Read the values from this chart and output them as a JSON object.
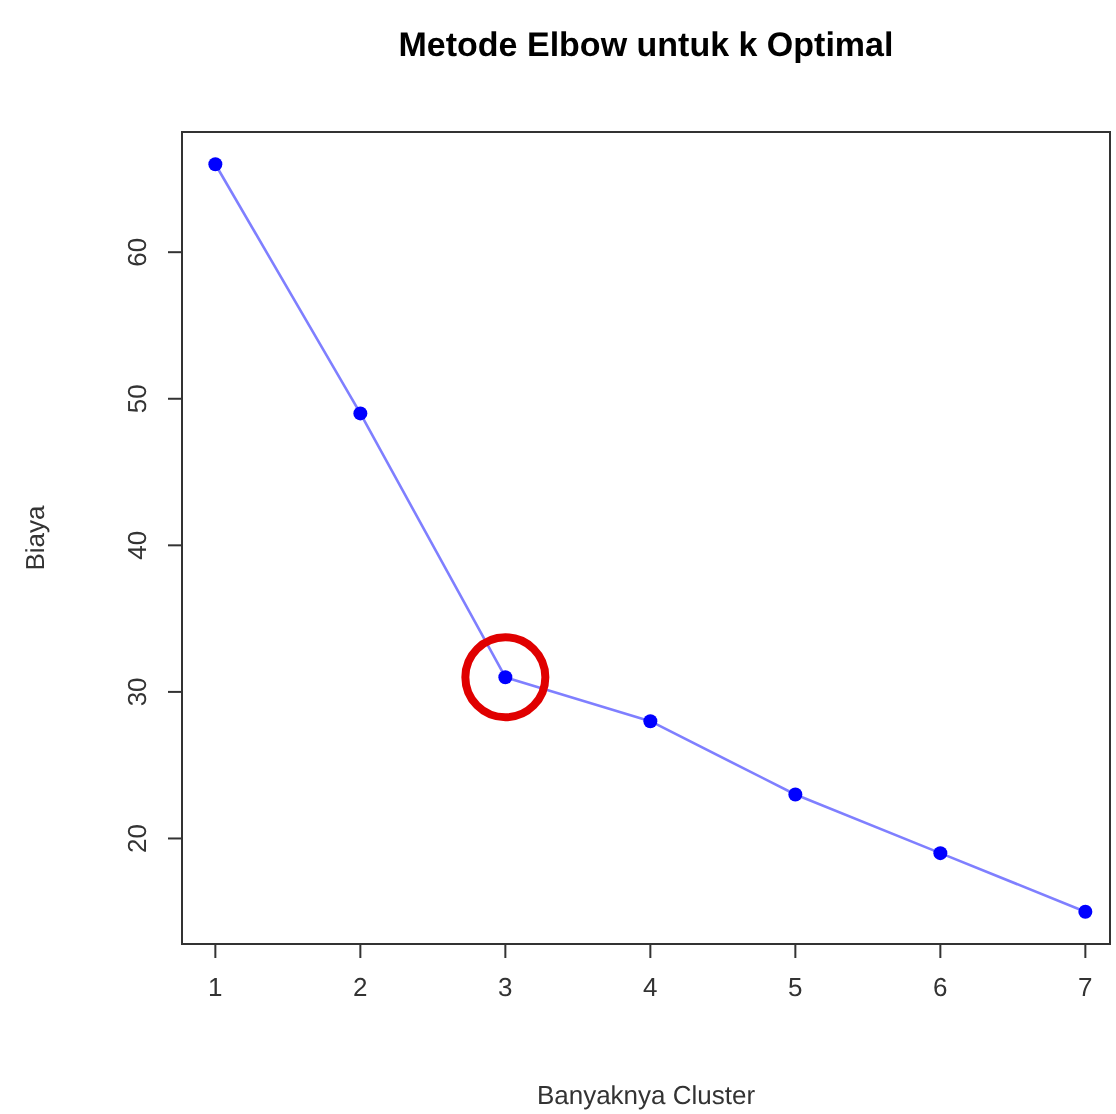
{
  "chart_data": {
    "type": "line",
    "title": "Metode Elbow untuk k Optimal",
    "xlabel": "Banyaknya Cluster",
    "ylabel": "Biaya",
    "x": [
      1,
      2,
      3,
      4,
      5,
      6,
      7
    ],
    "series": [
      {
        "color": "#0000ff",
        "values": [
          66,
          49,
          31,
          28,
          23,
          19,
          15
        ]
      }
    ],
    "xlim": [
      0.77,
      7.17
    ],
    "xticks": [
      1,
      2,
      3,
      4,
      5,
      6,
      7
    ],
    "ylim": [
      12.8,
      68.2
    ],
    "yticks": [
      20,
      30,
      40,
      50,
      60
    ],
    "grid": false,
    "marker": "circle",
    "line_style": "solid"
  }
}
